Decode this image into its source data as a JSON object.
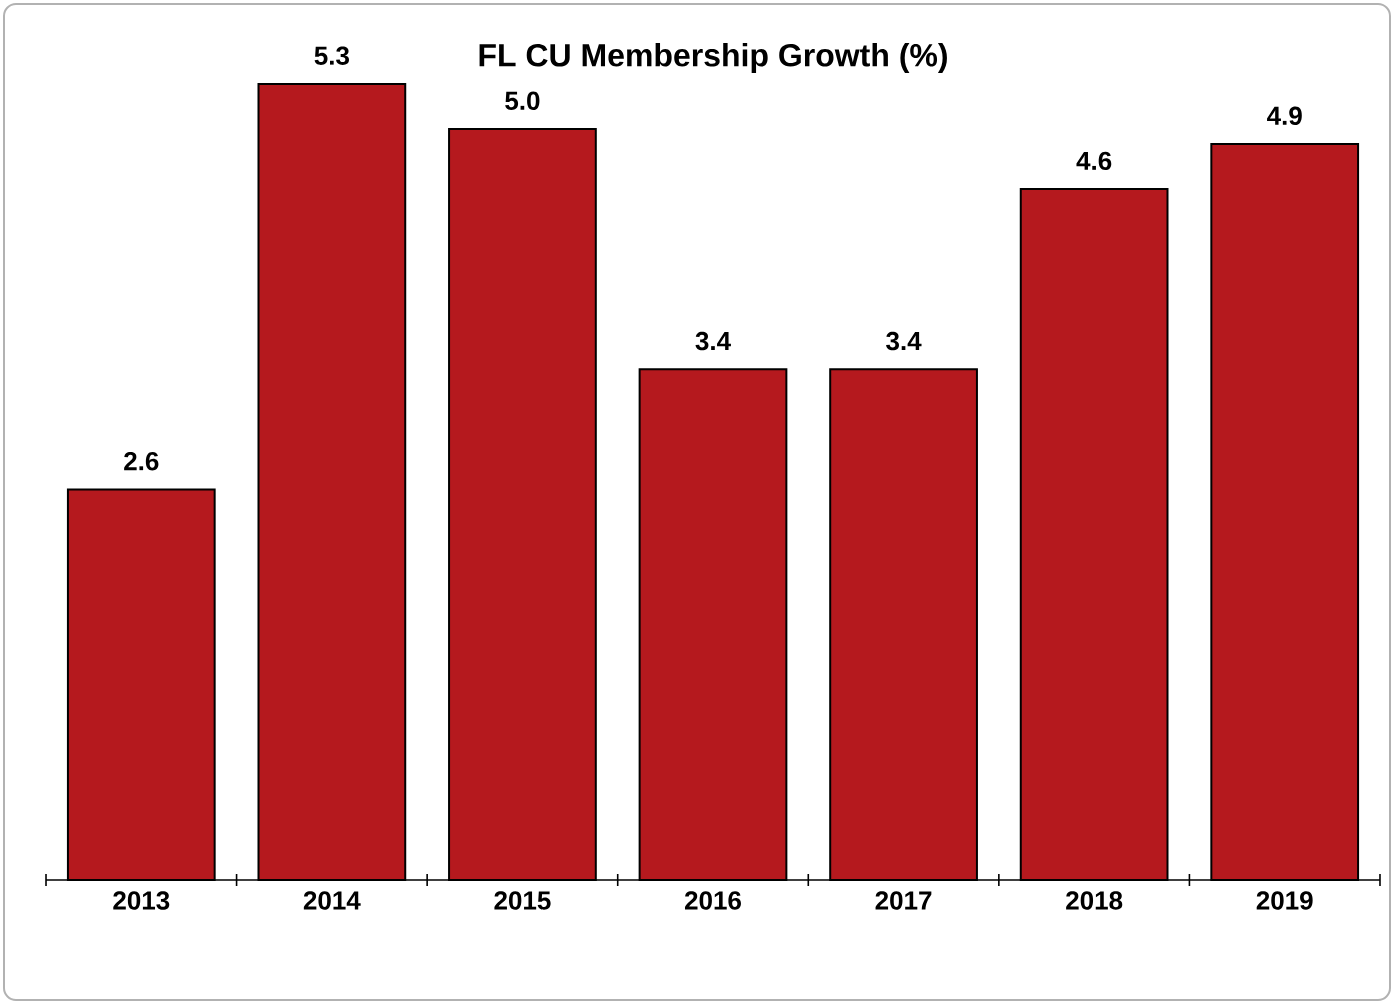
{
  "chart_data": {
    "type": "bar",
    "title": "FL CU Membership Growth (%)",
    "categories": [
      "2013",
      "2014",
      "2015",
      "2016",
      "2017",
      "2018",
      "2019"
    ],
    "values": [
      2.6,
      5.3,
      5.0,
      3.4,
      3.4,
      4.6,
      4.9
    ],
    "value_labels": [
      "2.6",
      "5.3",
      "5.0",
      "3.4",
      "3.4",
      "4.6",
      "4.9"
    ],
    "color": "#b5191e"
  }
}
